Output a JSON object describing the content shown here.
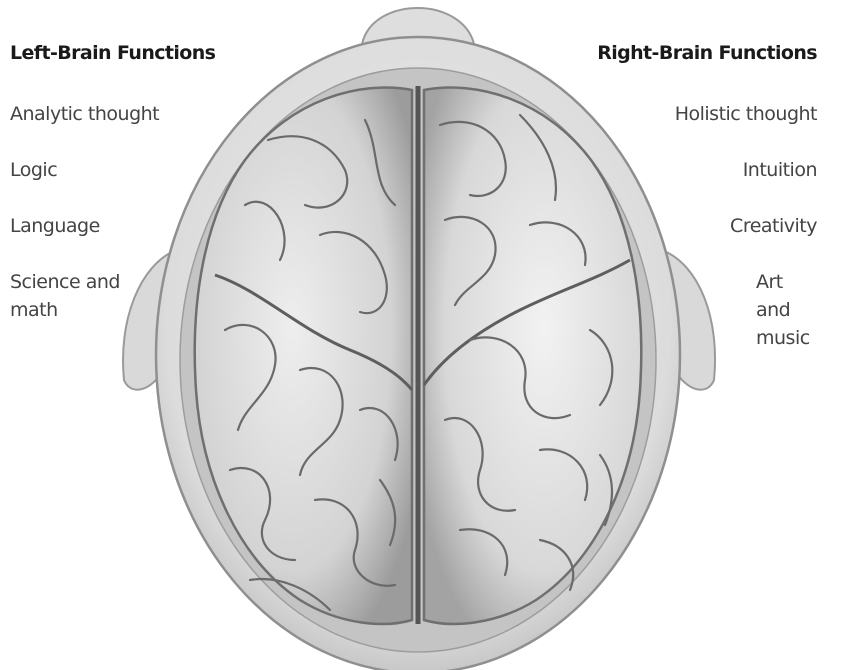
{
  "left": {
    "heading": "Left-Brain Functions",
    "items": [
      "Analytic thought",
      "Logic",
      "Language",
      "Science and\nmath"
    ]
  },
  "right": {
    "heading": "Right-Brain Functions",
    "items": [
      "Holistic thought",
      "Intuition",
      "Creativity",
      "Art and\nmusic"
    ]
  }
}
